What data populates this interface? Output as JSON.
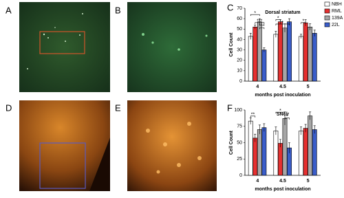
{
  "panels": [
    "A",
    "B",
    "D",
    "E"
  ],
  "chart_data": [
    {
      "type": "bar",
      "letter": "C",
      "title": "Dorsal striatum",
      "ylabel": "Cell Count",
      "xlabel": "months post inoculation",
      "categories": [
        "4",
        "4.5",
        "5"
      ],
      "ylim": [
        0,
        70
      ],
      "yticks": [
        0,
        10,
        20,
        30,
        40,
        50,
        60,
        70
      ],
      "legend": "right",
      "series": [
        {
          "name": "NBH",
          "color": "#ffffff",
          "values": [
            43,
            45,
            43
          ],
          "errors": [
            3,
            3,
            2
          ]
        },
        {
          "name": "RML",
          "color": "#e53030",
          "values": [
            52,
            57,
            56
          ],
          "errors": [
            2,
            2,
            3
          ]
        },
        {
          "name": "139A",
          "color": "#a6a6a6",
          "values": [
            57,
            51,
            52
          ],
          "errors": [
            3,
            4,
            3
          ]
        },
        {
          "name": "22L",
          "color": "#3a5dc9",
          "values": [
            30,
            57,
            46
          ],
          "errors": [
            2,
            3,
            3
          ]
        }
      ],
      "annotations": [
        "*",
        "***",
        "***",
        "*",
        "*",
        "*"
      ]
    },
    {
      "type": "bar",
      "letter": "F",
      "title": "SNc/r",
      "ylabel": "Cell Count",
      "xlabel": "months post inoculation",
      "categories": [
        "4",
        "4.5",
        "5"
      ],
      "ylim": [
        0,
        100
      ],
      "yticks": [
        0,
        25,
        50,
        75,
        100
      ],
      "series": [
        {
          "name": "NBH",
          "color": "#ffffff",
          "values": [
            83,
            68,
            68
          ],
          "errors": [
            5,
            6,
            6
          ]
        },
        {
          "name": "RML",
          "color": "#e53030",
          "values": [
            57,
            49,
            72
          ],
          "errors": [
            6,
            6,
            6
          ]
        },
        {
          "name": "139A",
          "color": "#a6a6a6",
          "values": [
            70,
            87,
            91
          ],
          "errors": [
            7,
            10,
            6
          ]
        },
        {
          "name": "22L",
          "color": "#3a5dc9",
          "values": [
            73,
            42,
            70
          ],
          "errors": [
            6,
            8,
            6
          ]
        }
      ],
      "annotations": [
        "**",
        "*",
        "*"
      ]
    }
  ]
}
